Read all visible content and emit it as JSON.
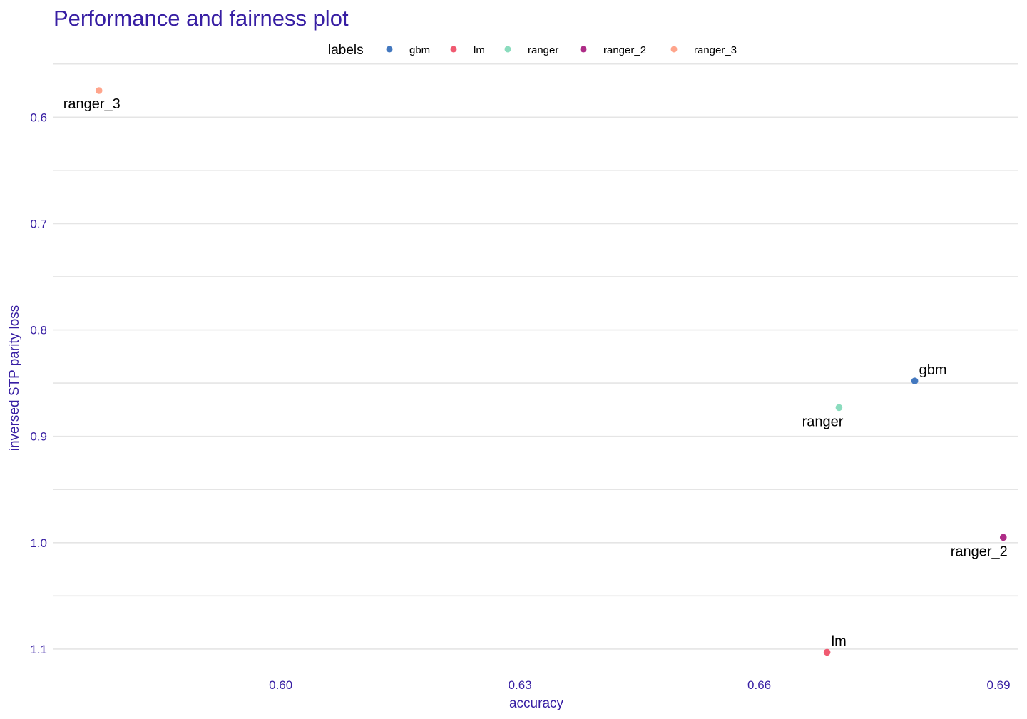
{
  "chart_data": {
    "type": "scatter",
    "title": "Performance and fairness plot",
    "xlabel": "accuracy",
    "ylabel": "inversed STP parity loss",
    "xlim": [
      0.5715,
      0.6925
    ],
    "ylim": [
      0.5475,
      1.1175
    ],
    "y_reversed": true,
    "x_ticks": [
      "0.60",
      "0.63",
      "0.66",
      "0.69"
    ],
    "x_tick_values": [
      0.6,
      0.63,
      0.66,
      0.69
    ],
    "y_ticks": [
      "0.6",
      "0.7",
      "0.8",
      "0.9",
      "1.0",
      "1.1"
    ],
    "y_tick_values": [
      0.6,
      0.7,
      0.8,
      0.9,
      1.0,
      1.1
    ],
    "grid": "horizontal",
    "legend": {
      "title": "labels",
      "placement": "top",
      "entries": [
        "gbm",
        "lm",
        "ranger",
        "ranger_2",
        "ranger_3"
      ]
    },
    "series": [
      {
        "name": "gbm",
        "color": "#4378bf",
        "x": 0.6795,
        "y": 0.848,
        "label_pos": "above-right"
      },
      {
        "name": "lm",
        "color": "#f05a71",
        "x": 0.6685,
        "y": 1.103,
        "label_pos": "above-right"
      },
      {
        "name": "ranger",
        "color": "#8bdcbe",
        "x": 0.67,
        "y": 0.873,
        "label_pos": "below-left"
      },
      {
        "name": "ranger_2",
        "color": "#ae2c87",
        "x": 0.6906,
        "y": 0.995,
        "label_pos": "below-left"
      },
      {
        "name": "ranger_3",
        "color": "#ffa58c",
        "x": 0.5772,
        "y": 0.575,
        "label_pos": "below"
      }
    ]
  }
}
